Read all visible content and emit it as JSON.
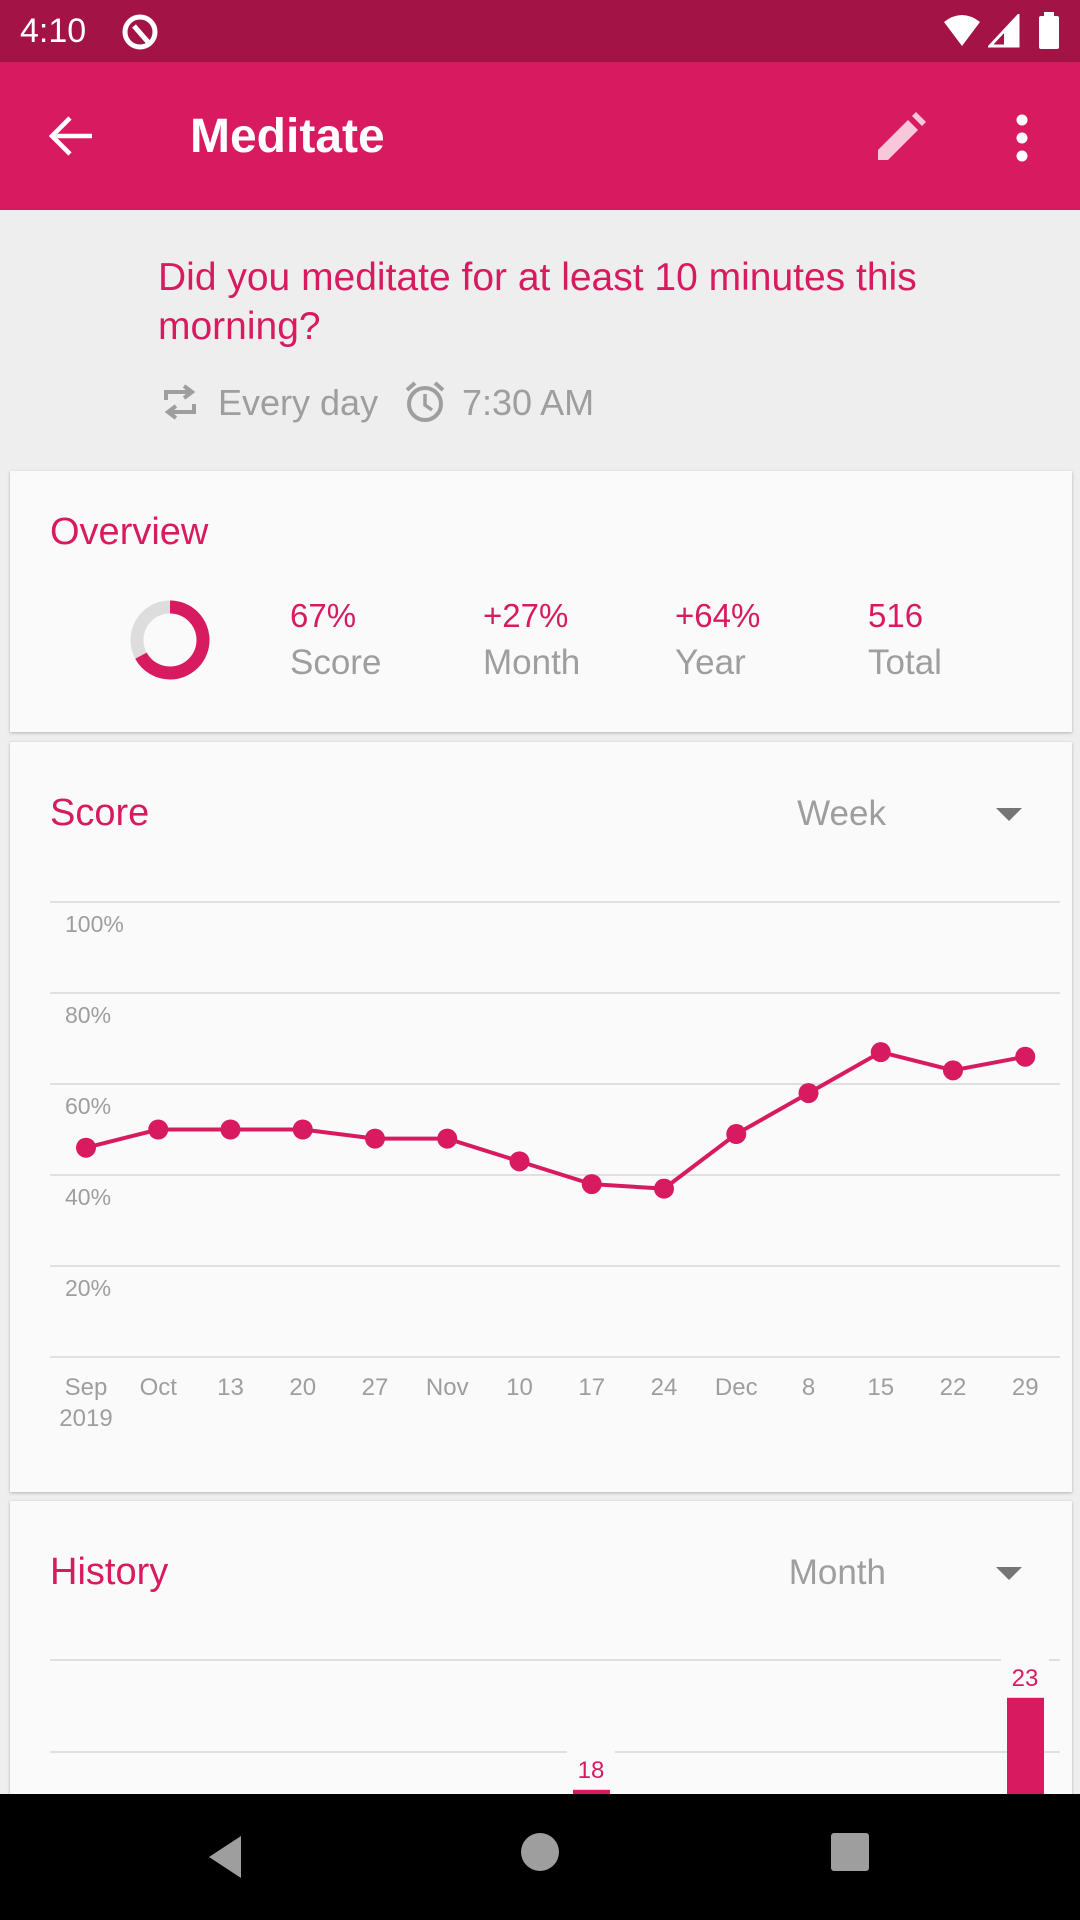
{
  "status_bar": {
    "time": "4:10",
    "icons": [
      "notification-q-icon",
      "wifi-icon",
      "signal-icon",
      "battery-icon"
    ]
  },
  "app_bar": {
    "title": "Meditate",
    "back_icon": "arrow-back-icon",
    "edit_icon": "pencil-icon",
    "more_icon": "more-vert-icon"
  },
  "header": {
    "question": "Did you meditate for at least 10 minutes this morning?",
    "frequency": "Every day",
    "reminder": "7:30 AM"
  },
  "overview": {
    "title": "Overview",
    "ring_fraction": 0.67,
    "stats": [
      {
        "value": "67%",
        "label": "Score"
      },
      {
        "value": "+27%",
        "label": "Month"
      },
      {
        "value": "+64%",
        "label": "Year"
      },
      {
        "value": "516",
        "label": "Total"
      }
    ]
  },
  "score": {
    "title": "Score",
    "period": "Week"
  },
  "history": {
    "title": "History",
    "period": "Month"
  },
  "colors": {
    "accent": "#d81b60",
    "status_bar": "#a31346",
    "grid": "#e0e0e0",
    "label": "#9e9e9e"
  },
  "chart_data": [
    {
      "type": "line",
      "title": "Score",
      "y_ticks": [
        "100%",
        "80%",
        "60%",
        "40%",
        "20%"
      ],
      "ylim": [
        0,
        100
      ],
      "categories": [
        "Sep",
        "Oct",
        "13",
        "20",
        "27",
        "Nov",
        "10",
        "17",
        "24",
        "Dec",
        "8",
        "15",
        "22",
        "29"
      ],
      "first_year_label": "2019",
      "values": [
        46,
        50,
        50,
        50,
        48,
        48,
        43,
        38,
        37,
        49,
        58,
        67,
        63,
        66
      ],
      "grid": true
    },
    {
      "type": "bar",
      "title": "History",
      "bars": [
        {
          "value": 18,
          "label": "18"
        },
        {
          "value": 23,
          "label": "23"
        }
      ],
      "grid": true
    }
  ]
}
